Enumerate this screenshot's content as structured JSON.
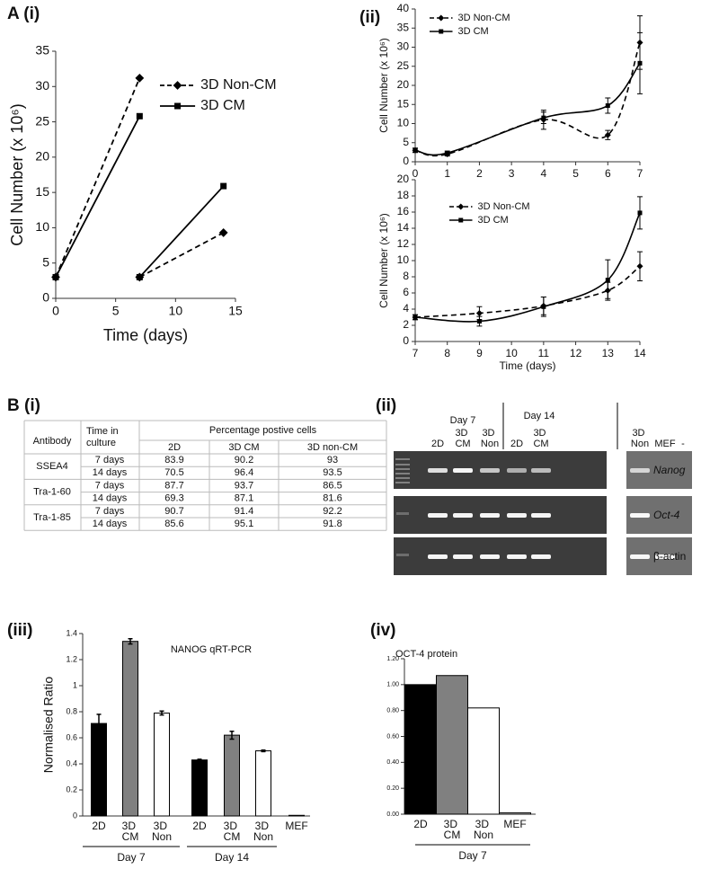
{
  "chart_data": [
    {
      "type": "line",
      "panel": "A (i)",
      "ylabel": "Cell Number (x 10⁶)",
      "xlabel": "Time (days)",
      "x": [
        0,
        7,
        7,
        7,
        14
      ],
      "series": [
        {
          "name": "3D Non-CM",
          "color": "#000000",
          "line_style": "dashed",
          "marker": "diamond",
          "values": [
            3,
            31.2,
            null,
            3,
            9.3
          ]
        },
        {
          "name": "3D CM",
          "color": "#000000",
          "line_style": "solid",
          "marker": "square",
          "values": [
            3,
            25.8,
            null,
            3,
            15.9
          ]
        }
      ],
      "xlim": [
        0,
        15
      ],
      "xticks": [
        0,
        5,
        10,
        15
      ],
      "ylim": [
        0,
        35
      ],
      "yticks": [
        0,
        5,
        10,
        15,
        20,
        25,
        30,
        35
      ],
      "smooth": false
    },
    {
      "type": "line",
      "panel": "(ii)",
      "ylabel": "Cell Number (x 10⁶)",
      "x": [
        0,
        1,
        4,
        6,
        7
      ],
      "series": [
        {
          "name": "3D Non-CM",
          "color": "#000000",
          "line_style": "dashed",
          "marker": "diamond",
          "values": [
            3,
            2,
            11,
            7,
            31.2
          ],
          "errors": [
            0.6,
            0.5,
            2.5,
            1.2,
            7
          ]
        },
        {
          "name": "3D CM",
          "color": "#000000",
          "line_style": "solid",
          "marker": "square",
          "values": [
            3,
            2.3,
            11.5,
            14.7,
            25.8
          ],
          "errors": [
            0.5,
            0.5,
            1.5,
            2,
            8
          ]
        }
      ],
      "xlim": [
        0,
        7
      ],
      "xticks": [
        0,
        1,
        2,
        3,
        4,
        5,
        6,
        7
      ],
      "ylim": [
        0,
        40
      ],
      "yticks": [
        0,
        5,
        10,
        15,
        20,
        25,
        30,
        35,
        40
      ],
      "smooth": true
    },
    {
      "type": "line",
      "ylabel": "Cell Number (x 10⁶)",
      "xlabel": "Time (days)",
      "x": [
        7,
        9,
        11,
        13,
        14
      ],
      "series": [
        {
          "name": "3D Non-CM",
          "color": "#000000",
          "line_style": "dashed",
          "marker": "diamond",
          "values": [
            3,
            3.5,
            4.4,
            6.3,
            9.3
          ],
          "errors": [
            0.3,
            0.8,
            1.1,
            1,
            1.8
          ]
        },
        {
          "name": "3D CM",
          "color": "#000000",
          "line_style": "solid",
          "marker": "square",
          "values": [
            3,
            2.5,
            4.3,
            7.6,
            15.9
          ],
          "errors": [
            0.3,
            0.6,
            1.2,
            2.5,
            2
          ]
        }
      ],
      "xlim": [
        7,
        14
      ],
      "xticks": [
        7,
        8,
        9,
        10,
        11,
        12,
        13,
        14
      ],
      "ylim": [
        0,
        20
      ],
      "yticks": [
        0,
        2,
        4,
        6,
        8,
        10,
        12,
        14,
        16,
        18,
        20
      ],
      "smooth": true
    },
    {
      "type": "bar",
      "panel": "(iii)",
      "title": "NANOG qRT-PCR",
      "ylabel": "Normalised Ratio",
      "categories": [
        "2D",
        "3D CM",
        "3D Non",
        "2D",
        "3D CM",
        "3D Non",
        "MEF"
      ],
      "values": [
        0.71,
        1.34,
        0.79,
        0.43,
        0.62,
        0.5,
        0.005
      ],
      "errors": [
        0.07,
        0.02,
        0.015,
        0.005,
        0.03,
        0.006,
        0
      ],
      "colors": [
        "#000000",
        "#808080",
        "#ffffff",
        "#000000",
        "#808080",
        "#ffffff",
        "#ffffff"
      ],
      "groups": [
        "Day 7",
        "Day 14"
      ],
      "ylim": [
        0,
        1.4
      ],
      "yticks": [
        0,
        0.2,
        0.4,
        0.6,
        0.8,
        1,
        1.2,
        1.4
      ]
    },
    {
      "type": "bar",
      "panel": "(iv)",
      "title": "OCT-4 protein",
      "categories": [
        "2D",
        "3D CM",
        "3D Non",
        "MEF"
      ],
      "values": [
        1.0,
        1.07,
        0.82,
        0.01
      ],
      "colors": [
        "#000000",
        "#808080",
        "#ffffff",
        "#ffffff"
      ],
      "groups": [
        "Day 7"
      ],
      "ylim": [
        0,
        1.2
      ],
      "yticks": [
        {
          "value": 0,
          "label": "0.00"
        },
        {
          "value": 0.2,
          "label": "0.20"
        },
        {
          "value": 0.4,
          "label": "0.40"
        },
        {
          "value": 0.6,
          "label": "0.60"
        },
        {
          "value": 0.8,
          "label": "0.80"
        },
        {
          "value": 1,
          "label": "1.00"
        },
        {
          "value": 1.2,
          "label": "1.20"
        }
      ]
    }
  ],
  "table": {
    "panel": "B (i)",
    "header": [
      "Antibody",
      "Time in culture",
      "Percentage postive cells"
    ],
    "columns": [
      "2D",
      "3D CM",
      "3D non-CM"
    ],
    "groups": [
      {
        "antibody": "SSEA4",
        "rows": [
          {
            "time": "7 days",
            "values": [
              83.9,
              90.2,
              93
            ]
          },
          {
            "time": "14 days",
            "values": [
              70.5,
              96.4,
              93.5
            ]
          }
        ]
      },
      {
        "antibody": "Tra-1-60",
        "rows": [
          {
            "time": "7 days",
            "values": [
              87.7,
              93.7,
              86.5
            ]
          },
          {
            "time": "14 days",
            "values": [
              69.3,
              87.1,
              81.6
            ]
          }
        ]
      },
      {
        "antibody": "Tra-1-85",
        "rows": [
          {
            "time": "7 days",
            "values": [
              90.7,
              91.4,
              92.2
            ]
          },
          {
            "time": "14 days",
            "values": [
              85.6,
              95.1,
              91.8
            ]
          }
        ]
      }
    ]
  },
  "gel": {
    "panel": "(ii)",
    "groups": [
      "Day 7",
      "Day 14"
    ],
    "lanes": [
      "2D",
      "3D CM",
      "3D Non",
      "2D",
      "3D CM",
      "3D Non",
      "MEF",
      "-"
    ],
    "genes": [
      "Nanog",
      "Oct-4",
      "β-actin"
    ]
  }
}
